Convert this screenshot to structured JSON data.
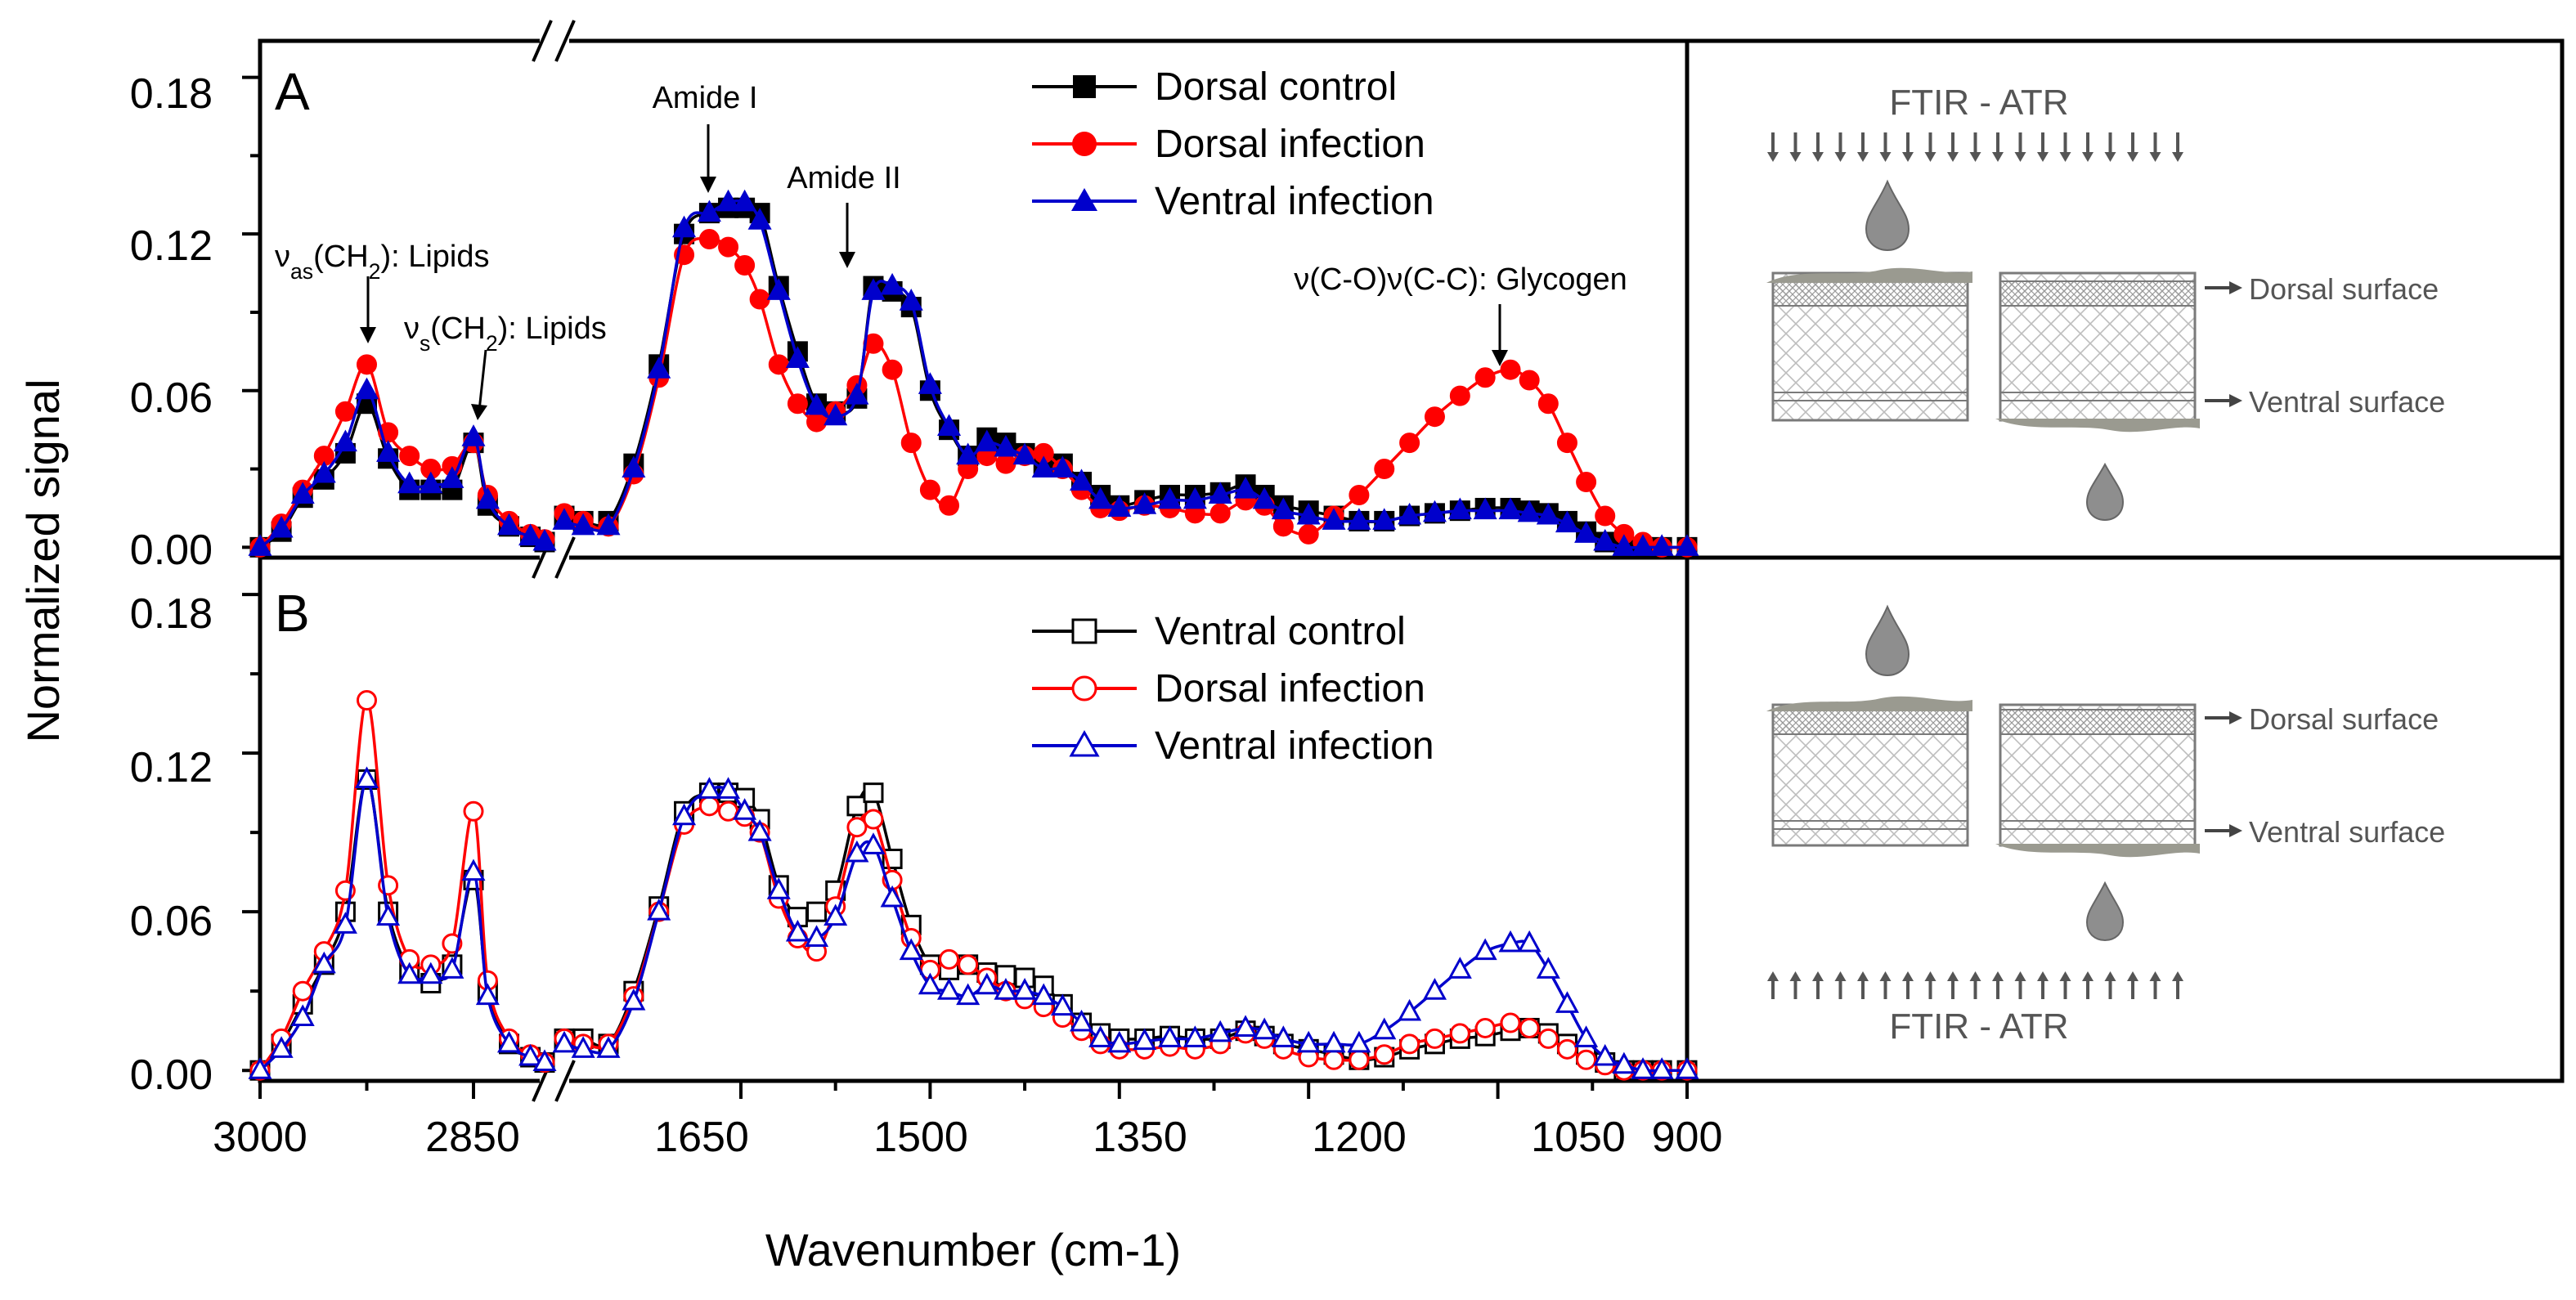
{
  "chart_data": [
    {
      "type": "line",
      "panel": "A",
      "xlabel": "Wavenumber (cm-1)",
      "ylabel": "Normalized signal",
      "ylim": [
        0,
        0.19
      ],
      "yticks": [
        "0.00",
        "0.06",
        "0.12",
        "0.18"
      ],
      "xticks": [
        "3000",
        "2850",
        "1650",
        "1500",
        "1350",
        "1200",
        "1050",
        "900"
      ],
      "x_break": [
        2800,
        1790
      ],
      "annotations": [
        {
          "text": "νas(CH2): Lipids",
          "x": 2922,
          "y": 0.07
        },
        {
          "text": "νs(CH2): Lipids",
          "x": 2852,
          "y": 0.045
        },
        {
          "text": "Amide I",
          "x": 1647,
          "y": 0.13
        },
        {
          "text": "Amide II",
          "x": 1558,
          "y": 0.104
        },
        {
          "text": "ν(C-O)ν(C-C): Glycogen",
          "x": 1040,
          "y": 0.07
        }
      ],
      "series": [
        {
          "name": "Dorsal control",
          "color": "#000000",
          "marker": "square-filled",
          "x": [
            3000,
            2985,
            2970,
            2955,
            2940,
            2925,
            2910,
            2895,
            2880,
            2865,
            2850,
            2840,
            2825,
            2810,
            2800,
            1790,
            1775,
            1755,
            1735,
            1715,
            1695,
            1675,
            1660,
            1647,
            1635,
            1620,
            1605,
            1590,
            1575,
            1558,
            1545,
            1530,
            1515,
            1500,
            1485,
            1470,
            1455,
            1440,
            1425,
            1410,
            1395,
            1380,
            1365,
            1350,
            1330,
            1310,
            1290,
            1270,
            1250,
            1235,
            1220,
            1200,
            1180,
            1160,
            1140,
            1120,
            1100,
            1080,
            1060,
            1040,
            1025,
            1010,
            995,
            980,
            965,
            950,
            935,
            920,
            900
          ],
          "y": [
            0.0,
            0.006,
            0.019,
            0.026,
            0.036,
            0.055,
            0.034,
            0.022,
            0.022,
            0.022,
            0.04,
            0.016,
            0.008,
            0.004,
            0.002,
            0.012,
            0.01,
            0.01,
            0.032,
            0.07,
            0.12,
            0.128,
            0.13,
            0.13,
            0.128,
            0.1,
            0.075,
            0.055,
            0.052,
            0.057,
            0.1,
            0.098,
            0.092,
            0.06,
            0.045,
            0.035,
            0.042,
            0.04,
            0.036,
            0.032,
            0.032,
            0.025,
            0.02,
            0.016,
            0.018,
            0.02,
            0.02,
            0.021,
            0.024,
            0.02,
            0.016,
            0.014,
            0.012,
            0.01,
            0.01,
            0.012,
            0.013,
            0.014,
            0.015,
            0.015,
            0.014,
            0.013,
            0.01,
            0.006,
            0.002,
            0.0,
            0.0,
            0.0,
            0.0
          ]
        },
        {
          "name": "Dorsal infection",
          "color": "#ff0000",
          "marker": "circle-filled",
          "x": [
            3000,
            2985,
            2970,
            2955,
            2940,
            2925,
            2910,
            2895,
            2880,
            2865,
            2850,
            2840,
            2825,
            2810,
            2800,
            1790,
            1775,
            1755,
            1735,
            1715,
            1695,
            1675,
            1660,
            1647,
            1635,
            1620,
            1605,
            1590,
            1575,
            1558,
            1545,
            1530,
            1515,
            1500,
            1485,
            1470,
            1455,
            1440,
            1425,
            1410,
            1395,
            1380,
            1365,
            1350,
            1330,
            1310,
            1290,
            1270,
            1250,
            1235,
            1220,
            1200,
            1180,
            1160,
            1140,
            1120,
            1100,
            1080,
            1060,
            1040,
            1025,
            1010,
            995,
            980,
            965,
            950,
            935,
            920,
            900
          ],
          "y": [
            0.0,
            0.009,
            0.022,
            0.035,
            0.052,
            0.07,
            0.044,
            0.035,
            0.03,
            0.031,
            0.04,
            0.02,
            0.01,
            0.005,
            0.003,
            0.013,
            0.01,
            0.008,
            0.028,
            0.065,
            0.112,
            0.118,
            0.115,
            0.108,
            0.095,
            0.07,
            0.055,
            0.048,
            0.052,
            0.062,
            0.078,
            0.068,
            0.04,
            0.022,
            0.016,
            0.03,
            0.035,
            0.032,
            0.035,
            0.036,
            0.03,
            0.022,
            0.015,
            0.014,
            0.016,
            0.015,
            0.013,
            0.013,
            0.018,
            0.016,
            0.008,
            0.005,
            0.012,
            0.02,
            0.03,
            0.04,
            0.05,
            0.058,
            0.065,
            0.068,
            0.064,
            0.055,
            0.04,
            0.025,
            0.012,
            0.005,
            0.002,
            0.0,
            0.0
          ]
        },
        {
          "name": "Ventral infection",
          "color": "#0000cc",
          "marker": "triangle-filled",
          "x": [
            3000,
            2985,
            2970,
            2955,
            2940,
            2925,
            2910,
            2895,
            2880,
            2865,
            2850,
            2840,
            2825,
            2810,
            2800,
            1790,
            1775,
            1755,
            1735,
            1715,
            1695,
            1675,
            1660,
            1647,
            1635,
            1620,
            1605,
            1590,
            1575,
            1558,
            1545,
            1530,
            1515,
            1500,
            1485,
            1470,
            1455,
            1440,
            1425,
            1410,
            1395,
            1380,
            1365,
            1350,
            1330,
            1310,
            1290,
            1270,
            1250,
            1235,
            1220,
            1200,
            1180,
            1160,
            1140,
            1120,
            1100,
            1080,
            1060,
            1040,
            1025,
            1010,
            995,
            980,
            965,
            950,
            935,
            920,
            900
          ],
          "y": [
            0.0,
            0.007,
            0.02,
            0.028,
            0.04,
            0.06,
            0.036,
            0.024,
            0.024,
            0.026,
            0.042,
            0.018,
            0.008,
            0.004,
            0.002,
            0.01,
            0.008,
            0.008,
            0.03,
            0.068,
            0.122,
            0.128,
            0.132,
            0.132,
            0.125,
            0.098,
            0.072,
            0.054,
            0.05,
            0.058,
            0.098,
            0.1,
            0.094,
            0.062,
            0.046,
            0.035,
            0.04,
            0.038,
            0.035,
            0.03,
            0.03,
            0.025,
            0.018,
            0.015,
            0.016,
            0.018,
            0.018,
            0.02,
            0.022,
            0.018,
            0.014,
            0.012,
            0.01,
            0.01,
            0.01,
            0.012,
            0.013,
            0.014,
            0.014,
            0.014,
            0.013,
            0.012,
            0.009,
            0.005,
            0.002,
            0.0,
            0.0,
            0.0,
            0.0
          ]
        }
      ]
    },
    {
      "type": "line",
      "panel": "B",
      "xlabel": "Wavenumber (cm-1)",
      "ylabel": "Normalized signal",
      "ylim": [
        0,
        0.19
      ],
      "yticks": [
        "0.00",
        "0.06",
        "0.12",
        "0.18"
      ],
      "xticks": [
        "3000",
        "2850",
        "1650",
        "1500",
        "1350",
        "1200",
        "1050",
        "900"
      ],
      "x_break": [
        2800,
        1790
      ],
      "series": [
        {
          "name": "Ventral control",
          "color": "#000000",
          "marker": "square-open",
          "x": [
            3000,
            2985,
            2970,
            2955,
            2940,
            2925,
            2910,
            2895,
            2880,
            2865,
            2850,
            2840,
            2825,
            2810,
            2800,
            1790,
            1775,
            1755,
            1735,
            1715,
            1695,
            1675,
            1660,
            1647,
            1635,
            1620,
            1605,
            1590,
            1575,
            1558,
            1545,
            1530,
            1515,
            1500,
            1485,
            1470,
            1455,
            1440,
            1425,
            1410,
            1395,
            1380,
            1365,
            1350,
            1330,
            1310,
            1290,
            1270,
            1250,
            1235,
            1220,
            1200,
            1180,
            1160,
            1140,
            1120,
            1100,
            1080,
            1060,
            1040,
            1025,
            1010,
            995,
            980,
            965,
            950,
            935,
            920,
            900
          ],
          "y": [
            0.0,
            0.01,
            0.025,
            0.04,
            0.06,
            0.11,
            0.06,
            0.038,
            0.033,
            0.04,
            0.072,
            0.03,
            0.01,
            0.005,
            0.003,
            0.012,
            0.012,
            0.01,
            0.03,
            0.062,
            0.098,
            0.105,
            0.105,
            0.103,
            0.095,
            0.07,
            0.058,
            0.06,
            0.068,
            0.1,
            0.105,
            0.08,
            0.055,
            0.04,
            0.038,
            0.04,
            0.037,
            0.036,
            0.035,
            0.032,
            0.025,
            0.018,
            0.014,
            0.012,
            0.012,
            0.013,
            0.012,
            0.012,
            0.015,
            0.013,
            0.01,
            0.008,
            0.006,
            0.004,
            0.005,
            0.008,
            0.01,
            0.012,
            0.013,
            0.015,
            0.016,
            0.014,
            0.01,
            0.006,
            0.003,
            0.0,
            0.0,
            0.0,
            0.0
          ]
        },
        {
          "name": "Dorsal infection",
          "color": "#ff0000",
          "marker": "circle-open",
          "x": [
            3000,
            2985,
            2970,
            2955,
            2940,
            2925,
            2910,
            2895,
            2880,
            2865,
            2850,
            2840,
            2825,
            2810,
            2800,
            1790,
            1775,
            1755,
            1735,
            1715,
            1695,
            1675,
            1660,
            1647,
            1635,
            1620,
            1605,
            1590,
            1575,
            1558,
            1545,
            1530,
            1515,
            1500,
            1485,
            1470,
            1455,
            1440,
            1425,
            1410,
            1395,
            1380,
            1365,
            1350,
            1330,
            1310,
            1290,
            1270,
            1250,
            1235,
            1220,
            1200,
            1180,
            1160,
            1140,
            1120,
            1100,
            1080,
            1060,
            1040,
            1025,
            1010,
            995,
            980,
            965,
            950,
            935,
            920,
            900
          ],
          "y": [
            0.0,
            0.012,
            0.03,
            0.045,
            0.068,
            0.14,
            0.07,
            0.042,
            0.04,
            0.048,
            0.098,
            0.034,
            0.012,
            0.006,
            0.003,
            0.012,
            0.01,
            0.01,
            0.028,
            0.06,
            0.093,
            0.1,
            0.098,
            0.096,
            0.09,
            0.065,
            0.05,
            0.045,
            0.062,
            0.092,
            0.095,
            0.072,
            0.05,
            0.038,
            0.042,
            0.04,
            0.035,
            0.03,
            0.027,
            0.024,
            0.02,
            0.015,
            0.01,
            0.008,
            0.008,
            0.009,
            0.008,
            0.01,
            0.014,
            0.012,
            0.008,
            0.005,
            0.004,
            0.004,
            0.006,
            0.01,
            0.012,
            0.014,
            0.016,
            0.018,
            0.016,
            0.012,
            0.008,
            0.004,
            0.002,
            0.0,
            0.0,
            0.0,
            0.0
          ]
        },
        {
          "name": "Ventral infection",
          "color": "#0000cc",
          "marker": "triangle-open",
          "x": [
            3000,
            2985,
            2970,
            2955,
            2940,
            2925,
            2910,
            2895,
            2880,
            2865,
            2850,
            2840,
            2825,
            2810,
            2800,
            1790,
            1775,
            1755,
            1735,
            1715,
            1695,
            1675,
            1660,
            1647,
            1635,
            1620,
            1605,
            1590,
            1575,
            1558,
            1545,
            1530,
            1515,
            1500,
            1485,
            1470,
            1455,
            1440,
            1425,
            1410,
            1395,
            1380,
            1365,
            1350,
            1330,
            1310,
            1290,
            1270,
            1250,
            1235,
            1220,
            1200,
            1180,
            1160,
            1140,
            1120,
            1100,
            1080,
            1060,
            1040,
            1025,
            1010,
            995,
            980,
            965,
            950,
            935,
            920,
            900
          ],
          "y": [
            0.0,
            0.008,
            0.02,
            0.04,
            0.055,
            0.11,
            0.058,
            0.036,
            0.036,
            0.038,
            0.075,
            0.028,
            0.01,
            0.005,
            0.003,
            0.01,
            0.008,
            0.008,
            0.026,
            0.06,
            0.096,
            0.106,
            0.106,
            0.098,
            0.09,
            0.068,
            0.052,
            0.05,
            0.058,
            0.082,
            0.085,
            0.065,
            0.045,
            0.032,
            0.03,
            0.028,
            0.032,
            0.03,
            0.03,
            0.028,
            0.024,
            0.018,
            0.012,
            0.01,
            0.011,
            0.012,
            0.012,
            0.014,
            0.016,
            0.015,
            0.012,
            0.01,
            0.01,
            0.01,
            0.015,
            0.022,
            0.03,
            0.038,
            0.045,
            0.048,
            0.048,
            0.038,
            0.025,
            0.012,
            0.005,
            0.002,
            0.0,
            0.0,
            0.0
          ]
        }
      ]
    }
  ],
  "schematic": {
    "top": {
      "title": "FTIR - ATR",
      "dorsal_label": "Dorsal surface",
      "ventral_label": "Ventral surface"
    },
    "bottom": {
      "title": "FTIR - ATR",
      "dorsal_label": "Dorsal surface",
      "ventral_label": "Ventral surface"
    }
  }
}
